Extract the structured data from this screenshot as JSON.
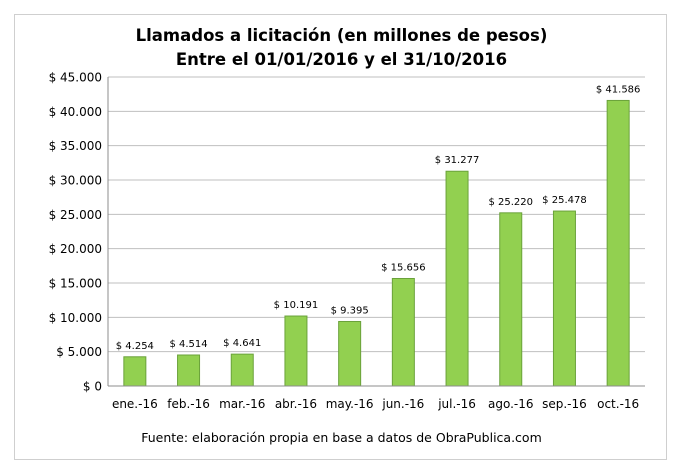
{
  "chart_data": {
    "type": "bar",
    "title": "Llamados a licitación (en millones de pesos)",
    "subtitle": "Entre el 01/01/2016 y el 31/10/2016",
    "categories": [
      "ene.-16",
      "feb.-16",
      "mar.-16",
      "abr.-16",
      "may.-16",
      "jun.-16",
      "jul.-16",
      "ago.-16",
      "sep.-16",
      "oct.-16"
    ],
    "values": [
      4254,
      4514,
      4641,
      10191,
      9395,
      15656,
      31277,
      25220,
      25478,
      41586
    ],
    "data_labels": [
      "$ 4.254",
      "$ 4.514",
      "$ 4.641",
      "$ 10.191",
      "$ 9.395",
      "$ 15.656",
      "$ 31.277",
      "$ 25.220",
      "$ 25.478",
      "$ 41.586"
    ],
    "y_ticks": [
      0,
      5000,
      10000,
      15000,
      20000,
      25000,
      30000,
      35000,
      40000,
      45000
    ],
    "y_tick_labels": [
      "$ 0",
      "$ 5.000",
      "$ 10.000",
      "$ 15.000",
      "$ 20.000",
      "$ 25.000",
      "$ 30.000",
      "$ 35.000",
      "$ 40.000",
      "$ 45.000"
    ],
    "ylim": [
      0,
      45000
    ],
    "xlabel": "",
    "ylabel": "",
    "grid": true,
    "legend": "none",
    "bar_color": "#92d050",
    "bar_edge_color": "#6aa23a",
    "grid_color": "#bfbfbf",
    "footer": "Fuente: elaboración propia en base a datos de ObraPublica.com"
  }
}
